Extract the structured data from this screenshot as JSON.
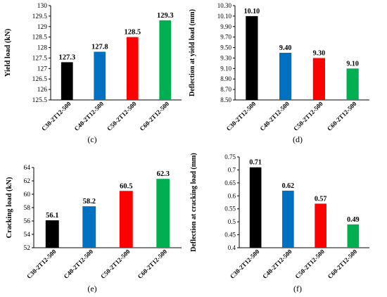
{
  "chart_data": [
    {
      "type": "bar",
      "panel": "(c)",
      "categories": [
        "C30-2T12-500",
        "C40-2T12-500",
        "C50-2T12-500",
        "C60-2T12-500"
      ],
      "values": [
        127.3,
        127.8,
        128.5,
        129.3
      ],
      "data_labels": [
        "127.3",
        "127.8",
        "128.5",
        "129.3"
      ],
      "colors": [
        "#000000",
        "#0070C0",
        "#FF0000",
        "#00B050"
      ],
      "ylabel": "Yield load (kN)",
      "ylim": [
        125.5,
        130
      ],
      "yticks": [
        125.5,
        126,
        126.5,
        127,
        127.5,
        128,
        128.5,
        129,
        129.5,
        130
      ],
      "ytick_labels": [
        "125.5",
        "126",
        "126.5",
        "127",
        "127.5",
        "128",
        "128.5",
        "129",
        "129.5",
        "130"
      ],
      "grid": false
    },
    {
      "type": "bar",
      "panel": "(d)",
      "categories": [
        "C30-2T12-500",
        "C40-2T12-500",
        "C50-2T12-500",
        "C60-2T12-500"
      ],
      "values": [
        10.1,
        9.4,
        9.3,
        9.1
      ],
      "data_labels": [
        "10.10",
        "9.40",
        "9.30",
        "9.10"
      ],
      "colors": [
        "#000000",
        "#0070C0",
        "#FF0000",
        "#00B050"
      ],
      "ylabel": "Deflection at yield load (mm)",
      "ylim": [
        8.5,
        10.3
      ],
      "yticks": [
        8.5,
        8.7,
        8.9,
        9.1,
        9.3,
        9.5,
        9.7,
        9.9,
        10.1,
        10.3
      ],
      "ytick_labels": [
        "8.50",
        "8.70",
        "8.90",
        "9.10",
        "9.30",
        "9.50",
        "9.70",
        "9.90",
        "10.10",
        "10.30"
      ],
      "grid": false
    },
    {
      "type": "bar",
      "panel": "(e)",
      "categories": [
        "C30-2T12-500",
        "C40-2T12-500",
        "C50-2T12-500",
        "C60-2T12-500"
      ],
      "values": [
        56.1,
        58.2,
        60.5,
        62.3
      ],
      "data_labels": [
        "56.1",
        "58.2",
        "60.5",
        "62.3"
      ],
      "colors": [
        "#000000",
        "#0070C0",
        "#FF0000",
        "#00B050"
      ],
      "ylabel": "Cracking load (kN)",
      "ylim": [
        52,
        64
      ],
      "yticks": [
        52,
        54,
        56,
        58,
        60,
        62,
        64
      ],
      "ytick_labels": [
        "52",
        "54",
        "56",
        "58",
        "60",
        "62",
        "64"
      ],
      "grid": false
    },
    {
      "type": "bar",
      "panel": "(f)",
      "categories": [
        "C30-2T12-500",
        "C40-2T12-500",
        "C50-2T12-500",
        "C60-2T12-500"
      ],
      "values": [
        0.71,
        0.62,
        0.57,
        0.49
      ],
      "data_labels": [
        "0.71",
        "0.62",
        "0.57",
        "0.49"
      ],
      "colors": [
        "#000000",
        "#0070C0",
        "#FF0000",
        "#00B050"
      ],
      "ylabel": "Deflection at cracking load (mm)",
      "ylim": [
        0.4,
        0.75
      ],
      "yticks": [
        0.4,
        0.45,
        0.5,
        0.55,
        0.6,
        0.65,
        0.7,
        0.75
      ],
      "ytick_labels": [
        "0.4",
        "0.45",
        "0.5",
        "0.55",
        "0.6",
        "0.65",
        "0.7",
        "0.75"
      ],
      "grid": false
    }
  ]
}
